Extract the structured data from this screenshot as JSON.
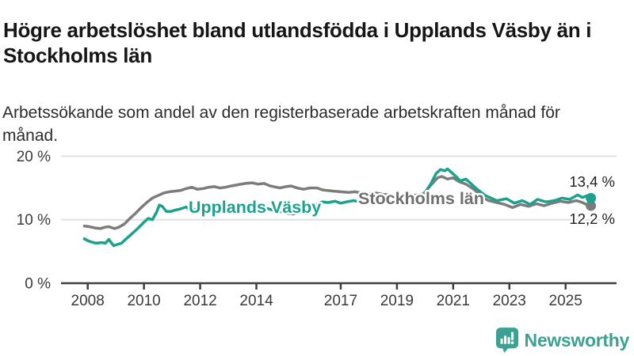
{
  "title": "Högre arbetslöshet bland utlandsfödda i Upplands Väsby än i Stockholms län",
  "subtitle": "Arbetssökande som andel av den registerbaserade arbetskraften månad för månad.",
  "branding": {
    "name": "Newsworthy",
    "color": "#3ba293",
    "icon": "bar-chart-speech-bubble-icon"
  },
  "chart_data": {
    "type": "line",
    "unit": "%",
    "ylim": [
      0,
      20
    ],
    "xlim": [
      2007.8,
      2026.3
    ],
    "grid": "horizontal",
    "legend_position": "inline-labels",
    "y_ticks": [
      {
        "value": 0,
        "label": "0 %"
      },
      {
        "value": 10,
        "label": "10 %"
      },
      {
        "value": 20,
        "label": "20 %"
      }
    ],
    "x_ticks": [
      "2008",
      "2010",
      "2012",
      "2014",
      "2017",
      "2019",
      "2021",
      "2023",
      "2025"
    ],
    "series": [
      {
        "name": "Stockholms län",
        "color": "#7c7c7c",
        "label_color": "#6f6f6f",
        "end_label": "12,2 %",
        "end_value": 12.2,
        "points": [
          [
            2007.88,
            9.0
          ],
          [
            2008.05,
            8.9
          ],
          [
            2008.25,
            8.7
          ],
          [
            2008.45,
            8.6
          ],
          [
            2008.6,
            8.8
          ],
          [
            2008.75,
            8.9
          ],
          [
            2008.95,
            8.6
          ],
          [
            2009.1,
            8.8
          ],
          [
            2009.3,
            9.3
          ],
          [
            2009.5,
            10.2
          ],
          [
            2009.7,
            11.0
          ],
          [
            2009.9,
            11.9
          ],
          [
            2010.1,
            12.7
          ],
          [
            2010.3,
            13.4
          ],
          [
            2010.5,
            13.8
          ],
          [
            2010.7,
            14.2
          ],
          [
            2010.9,
            14.4
          ],
          [
            2011.1,
            14.5
          ],
          [
            2011.3,
            14.6
          ],
          [
            2011.5,
            14.9
          ],
          [
            2011.7,
            15.1
          ],
          [
            2011.9,
            14.8
          ],
          [
            2012.1,
            14.9
          ],
          [
            2012.3,
            15.1
          ],
          [
            2012.5,
            15.2
          ],
          [
            2012.7,
            15.0
          ],
          [
            2012.9,
            15.1
          ],
          [
            2013.1,
            15.3
          ],
          [
            2013.34,
            15.5
          ],
          [
            2013.6,
            15.7
          ],
          [
            2013.85,
            15.8
          ],
          [
            2014.05,
            15.6
          ],
          [
            2014.27,
            15.7
          ],
          [
            2014.5,
            15.3
          ],
          [
            2014.83,
            15.0
          ],
          [
            2015.05,
            15.2
          ],
          [
            2015.23,
            15.3
          ],
          [
            2015.45,
            15.0
          ],
          [
            2015.68,
            14.8
          ],
          [
            2015.9,
            15.0
          ],
          [
            2016.16,
            15.0
          ],
          [
            2016.35,
            14.7
          ],
          [
            2016.52,
            14.6
          ],
          [
            2016.75,
            14.5
          ],
          [
            2017.0,
            14.4
          ],
          [
            2017.28,
            14.3
          ],
          [
            2017.5,
            14.4
          ],
          [
            2017.75,
            14.2
          ],
          [
            2018.0,
            14.1
          ],
          [
            2018.25,
            14.2
          ],
          [
            2018.5,
            14.0
          ],
          [
            2018.75,
            13.9
          ],
          [
            2019.0,
            13.8
          ],
          [
            2019.25,
            13.9
          ],
          [
            2019.5,
            13.8
          ],
          [
            2019.75,
            13.9
          ],
          [
            2019.95,
            14.1
          ],
          [
            2020.2,
            15.4
          ],
          [
            2020.45,
            16.6
          ],
          [
            2020.6,
            16.8
          ],
          [
            2020.8,
            16.4
          ],
          [
            2021.0,
            16.6
          ],
          [
            2021.2,
            16.0
          ],
          [
            2021.45,
            15.6
          ],
          [
            2021.7,
            14.9
          ],
          [
            2021.9,
            14.2
          ],
          [
            2022.13,
            13.3
          ],
          [
            2022.27,
            13.0
          ],
          [
            2022.55,
            12.7
          ],
          [
            2022.83,
            12.4
          ],
          [
            2023.11,
            11.9
          ],
          [
            2023.4,
            12.4
          ],
          [
            2023.68,
            12.1
          ],
          [
            2023.96,
            12.5
          ],
          [
            2024.24,
            12.2
          ],
          [
            2024.53,
            12.6
          ],
          [
            2024.81,
            12.9
          ],
          [
            2025.1,
            12.7
          ],
          [
            2025.38,
            13.0
          ],
          [
            2025.6,
            12.7
          ],
          [
            2025.78,
            12.3
          ],
          [
            2025.9,
            12.2
          ]
        ]
      },
      {
        "name": "Upplands Väsby",
        "color": "#1aa28e",
        "label_color": "#1aa28e",
        "end_label": "13,4 %",
        "end_value": 13.4,
        "points": [
          [
            2007.88,
            7.0
          ],
          [
            2008.0,
            6.7
          ],
          [
            2008.12,
            6.5
          ],
          [
            2008.3,
            6.3
          ],
          [
            2008.5,
            6.4
          ],
          [
            2008.63,
            6.3
          ],
          [
            2008.75,
            6.9
          ],
          [
            2008.92,
            5.9
          ],
          [
            2009.05,
            6.1
          ],
          [
            2009.2,
            6.3
          ],
          [
            2009.42,
            7.2
          ],
          [
            2009.6,
            7.9
          ],
          [
            2009.8,
            8.7
          ],
          [
            2010.0,
            9.6
          ],
          [
            2010.15,
            10.2
          ],
          [
            2010.3,
            10.0
          ],
          [
            2010.45,
            11.2
          ],
          [
            2010.55,
            12.3
          ],
          [
            2010.65,
            12.1
          ],
          [
            2010.8,
            11.3
          ],
          [
            2010.95,
            11.3
          ],
          [
            2011.1,
            11.5
          ],
          [
            2011.3,
            11.7
          ],
          [
            2011.5,
            12.0
          ],
          [
            2011.65,
            11.5
          ],
          [
            2011.8,
            11.6
          ],
          [
            2011.95,
            11.8
          ],
          [
            2012.15,
            12.1
          ],
          [
            2012.4,
            12.2
          ],
          [
            2012.6,
            11.9
          ],
          [
            2012.8,
            12.0
          ],
          [
            2013.0,
            12.1
          ],
          [
            2013.25,
            12.3
          ],
          [
            2013.5,
            12.1
          ],
          [
            2013.7,
            11.9
          ],
          [
            2013.9,
            12.0
          ],
          [
            2014.1,
            11.9
          ],
          [
            2014.35,
            11.8
          ],
          [
            2014.6,
            11.5
          ],
          [
            2014.85,
            11.3
          ],
          [
            2015.1,
            11.0
          ],
          [
            2015.3,
            10.9
          ],
          [
            2015.55,
            11.1
          ],
          [
            2015.8,
            11.7
          ],
          [
            2016.05,
            12.3
          ],
          [
            2016.35,
            12.8
          ],
          [
            2016.55,
            12.7
          ],
          [
            2016.8,
            12.9
          ],
          [
            2017.0,
            12.6
          ],
          [
            2017.2,
            12.8
          ],
          [
            2017.45,
            13.0
          ],
          [
            2017.7,
            12.8
          ],
          [
            2017.95,
            13.0
          ],
          [
            2018.2,
            12.9
          ],
          [
            2018.45,
            13.1
          ],
          [
            2018.7,
            12.8
          ],
          [
            2018.95,
            13.0
          ],
          [
            2019.2,
            13.1
          ],
          [
            2019.45,
            13.0
          ],
          [
            2019.7,
            13.2
          ],
          [
            2019.95,
            13.9
          ],
          [
            2020.2,
            15.6
          ],
          [
            2020.4,
            17.3
          ],
          [
            2020.55,
            17.9
          ],
          [
            2020.7,
            17.7
          ],
          [
            2020.8,
            18.0
          ],
          [
            2020.95,
            17.4
          ],
          [
            2021.1,
            16.8
          ],
          [
            2021.25,
            16.1
          ],
          [
            2021.45,
            16.4
          ],
          [
            2021.6,
            15.8
          ],
          [
            2021.8,
            15.0
          ],
          [
            2022.0,
            14.3
          ],
          [
            2022.15,
            13.8
          ],
          [
            2022.3,
            13.5
          ],
          [
            2022.55,
            13.0
          ],
          [
            2022.9,
            13.3
          ],
          [
            2023.18,
            12.6
          ],
          [
            2023.46,
            13.0
          ],
          [
            2023.74,
            12.4
          ],
          [
            2024.0,
            13.2
          ],
          [
            2024.3,
            12.8
          ],
          [
            2024.6,
            13.0
          ],
          [
            2024.87,
            13.4
          ],
          [
            2025.15,
            13.2
          ],
          [
            2025.43,
            13.9
          ],
          [
            2025.6,
            13.5
          ],
          [
            2025.78,
            13.8
          ],
          [
            2025.9,
            13.4
          ]
        ]
      }
    ]
  }
}
